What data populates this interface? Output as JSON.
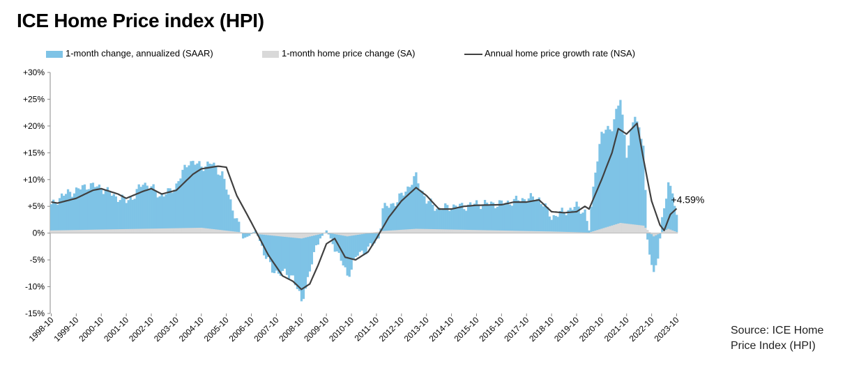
{
  "title": "ICE Home Price index (HPI)",
  "source_lines": [
    "Source: ICE Home",
    "Price Index (HPI)"
  ],
  "colors": {
    "saar": "#7EC3E6",
    "sa": "#D9D9D9",
    "nsa": "#404040",
    "axis": "#888888"
  },
  "chart_data": {
    "type": "bar",
    "title": "ICE Home Price index (HPI)",
    "xlabel": "",
    "ylabel": "",
    "ylim": [
      -15,
      30
    ],
    "yticks": [
      30,
      25,
      20,
      15,
      10,
      5,
      0,
      -5,
      -10,
      -15
    ],
    "ytick_labels": [
      "+30%",
      "+25%",
      "+20%",
      "+15%",
      "+10%",
      "+5%",
      "0%",
      "-5%",
      "-10%",
      "-15%"
    ],
    "x_start": "1998-10",
    "x_end": "2023-10",
    "xtick_labels": [
      "1998-10",
      "1999-10",
      "2000-10",
      "2001-10",
      "2002-10",
      "2003-10",
      "2004-10",
      "2005-10",
      "2006-10",
      "2007-10",
      "2008-10",
      "2009-10",
      "2010-10",
      "2011-10",
      "2012-10",
      "2013-10",
      "2014-10",
      "2015-10",
      "2016-10",
      "2017-10",
      "2018-10",
      "2019-10",
      "2020-10",
      "2021-10",
      "2022-10",
      "2023-10"
    ],
    "grid": false,
    "legend_position": "top",
    "annotation": "+4.59%",
    "series": [
      {
        "name": "1-month change, annualized (SAAR)",
        "type": "bar",
        "anchors": [
          [
            "1998-10",
            5.0
          ],
          [
            "1999-03",
            7.0
          ],
          [
            "1999-10",
            8.0
          ],
          [
            "2000-04",
            9.0
          ],
          [
            "2000-10",
            8.5
          ],
          [
            "2001-04",
            7.0
          ],
          [
            "2001-10",
            6.0
          ],
          [
            "2002-02",
            7.0
          ],
          [
            "2002-06",
            9.5
          ],
          [
            "2002-10",
            8.5
          ],
          [
            "2003-02",
            7.0
          ],
          [
            "2003-06",
            7.5
          ],
          [
            "2003-10",
            9.0
          ],
          [
            "2004-04",
            13.5
          ],
          [
            "2004-10",
            12.5
          ],
          [
            "2005-03",
            13.0
          ],
          [
            "2005-08",
            11.0
          ],
          [
            "2005-11",
            7.0
          ],
          [
            "2006-03",
            2.5
          ],
          [
            "2006-06",
            -1.0
          ],
          [
            "2006-09",
            -0.5
          ],
          [
            "2006-12",
            0.5
          ],
          [
            "2007-04",
            -3.5
          ],
          [
            "2007-08",
            -7.0
          ],
          [
            "2008-01",
            -7.5
          ],
          [
            "2008-06",
            -8.0
          ],
          [
            "2008-10",
            -13.0
          ],
          [
            "2009-02",
            -7.0
          ],
          [
            "2009-06",
            -1.5
          ],
          [
            "2009-10",
            0.5
          ],
          [
            "2010-02",
            -2.5
          ],
          [
            "2010-06",
            -6.0
          ],
          [
            "2010-08",
            -8.0
          ],
          [
            "2011-01",
            -4.0
          ],
          [
            "2011-06",
            -3.0
          ],
          [
            "2011-11",
            -1.0
          ],
          [
            "2012-01",
            4.5
          ],
          [
            "2012-08",
            6.0
          ],
          [
            "2013-02",
            9.0
          ],
          [
            "2013-05",
            10.5
          ],
          [
            "2013-10",
            6.0
          ],
          [
            "2014-04",
            4.5
          ],
          [
            "2014-10",
            5.0
          ],
          [
            "2015-04",
            5.0
          ],
          [
            "2015-10",
            5.5
          ],
          [
            "2016-04",
            5.5
          ],
          [
            "2016-10",
            5.5
          ],
          [
            "2017-04",
            6.0
          ],
          [
            "2017-10",
            6.5
          ],
          [
            "2018-04",
            6.5
          ],
          [
            "2018-10",
            3.0
          ],
          [
            "2019-04",
            4.0
          ],
          [
            "2019-10",
            5.0
          ],
          [
            "2020-02",
            4.0
          ],
          [
            "2020-04",
            0.5
          ],
          [
            "2020-07",
            12.0
          ],
          [
            "2020-10",
            18.5
          ],
          [
            "2021-03",
            20.0
          ],
          [
            "2021-07",
            25.0
          ],
          [
            "2021-10",
            15.0
          ],
          [
            "2022-02",
            22.0
          ],
          [
            "2022-06",
            17.0
          ],
          [
            "2022-08",
            -2.0
          ],
          [
            "2022-11",
            -7.5
          ],
          [
            "2023-01",
            -4.0
          ],
          [
            "2023-03",
            2.0
          ],
          [
            "2023-06",
            9.5
          ],
          [
            "2023-08",
            8.0
          ],
          [
            "2023-10",
            2.5
          ]
        ]
      },
      {
        "name": "1-month home price change (SA)",
        "type": "bar",
        "anchors": [
          [
            "1998-10",
            0.5
          ],
          [
            "2004-10",
            1.0
          ],
          [
            "2006-06",
            0.1
          ],
          [
            "2007-04",
            -0.3
          ],
          [
            "2008-10",
            -1.0
          ],
          [
            "2009-10",
            0.1
          ],
          [
            "2010-08",
            -0.6
          ],
          [
            "2012-01",
            0.4
          ],
          [
            "2013-05",
            0.8
          ],
          [
            "2018-10",
            0.3
          ],
          [
            "2020-04",
            0.1
          ],
          [
            "2021-07",
            1.9
          ],
          [
            "2022-06",
            1.4
          ],
          [
            "2022-11",
            -0.6
          ],
          [
            "2023-06",
            0.8
          ],
          [
            "2023-10",
            0.2
          ]
        ]
      },
      {
        "name": "Annual home price growth rate (NSA)",
        "type": "line",
        "anchors": [
          [
            "1998-10",
            5.8
          ],
          [
            "1999-01",
            5.6
          ],
          [
            "1999-10",
            6.5
          ],
          [
            "2000-06",
            8.0
          ],
          [
            "2000-10",
            8.3
          ],
          [
            "2001-06",
            7.3
          ],
          [
            "2001-10",
            6.5
          ],
          [
            "2002-06",
            7.8
          ],
          [
            "2002-10",
            8.3
          ],
          [
            "2003-03",
            7.3
          ],
          [
            "2003-10",
            8.0
          ],
          [
            "2004-06",
            11.0
          ],
          [
            "2004-10",
            12.0
          ],
          [
            "2005-06",
            12.5
          ],
          [
            "2005-10",
            12.3
          ],
          [
            "2006-03",
            7.0
          ],
          [
            "2006-10",
            2.0
          ],
          [
            "2007-06",
            -4.0
          ],
          [
            "2008-01",
            -8.0
          ],
          [
            "2008-06",
            -9.0
          ],
          [
            "2008-10",
            -10.5
          ],
          [
            "2009-02",
            -9.5
          ],
          [
            "2009-06",
            -6.0
          ],
          [
            "2009-10",
            -2.0
          ],
          [
            "2010-02",
            -1.0
          ],
          [
            "2010-07",
            -4.5
          ],
          [
            "2010-12",
            -5.0
          ],
          [
            "2011-06",
            -3.5
          ],
          [
            "2011-10",
            -1.0
          ],
          [
            "2012-04",
            3.0
          ],
          [
            "2012-10",
            6.0
          ],
          [
            "2013-05",
            8.5
          ],
          [
            "2013-10",
            7.0
          ],
          [
            "2014-04",
            4.5
          ],
          [
            "2014-10",
            4.5
          ],
          [
            "2015-04",
            5.0
          ],
          [
            "2015-10",
            5.2
          ],
          [
            "2016-10",
            5.3
          ],
          [
            "2017-04",
            5.8
          ],
          [
            "2017-10",
            5.8
          ],
          [
            "2018-04",
            6.2
          ],
          [
            "2018-10",
            4.0
          ],
          [
            "2019-04",
            3.8
          ],
          [
            "2019-10",
            4.0
          ],
          [
            "2020-02",
            5.0
          ],
          [
            "2020-04",
            4.5
          ],
          [
            "2020-10",
            10.0
          ],
          [
            "2021-03",
            15.0
          ],
          [
            "2021-06",
            19.5
          ],
          [
            "2021-10",
            18.5
          ],
          [
            "2022-03",
            20.5
          ],
          [
            "2022-06",
            14.0
          ],
          [
            "2022-10",
            6.0
          ],
          [
            "2023-02",
            1.5
          ],
          [
            "2023-04",
            0.5
          ],
          [
            "2023-07",
            3.5
          ],
          [
            "2023-10",
            4.59
          ]
        ]
      }
    ]
  }
}
